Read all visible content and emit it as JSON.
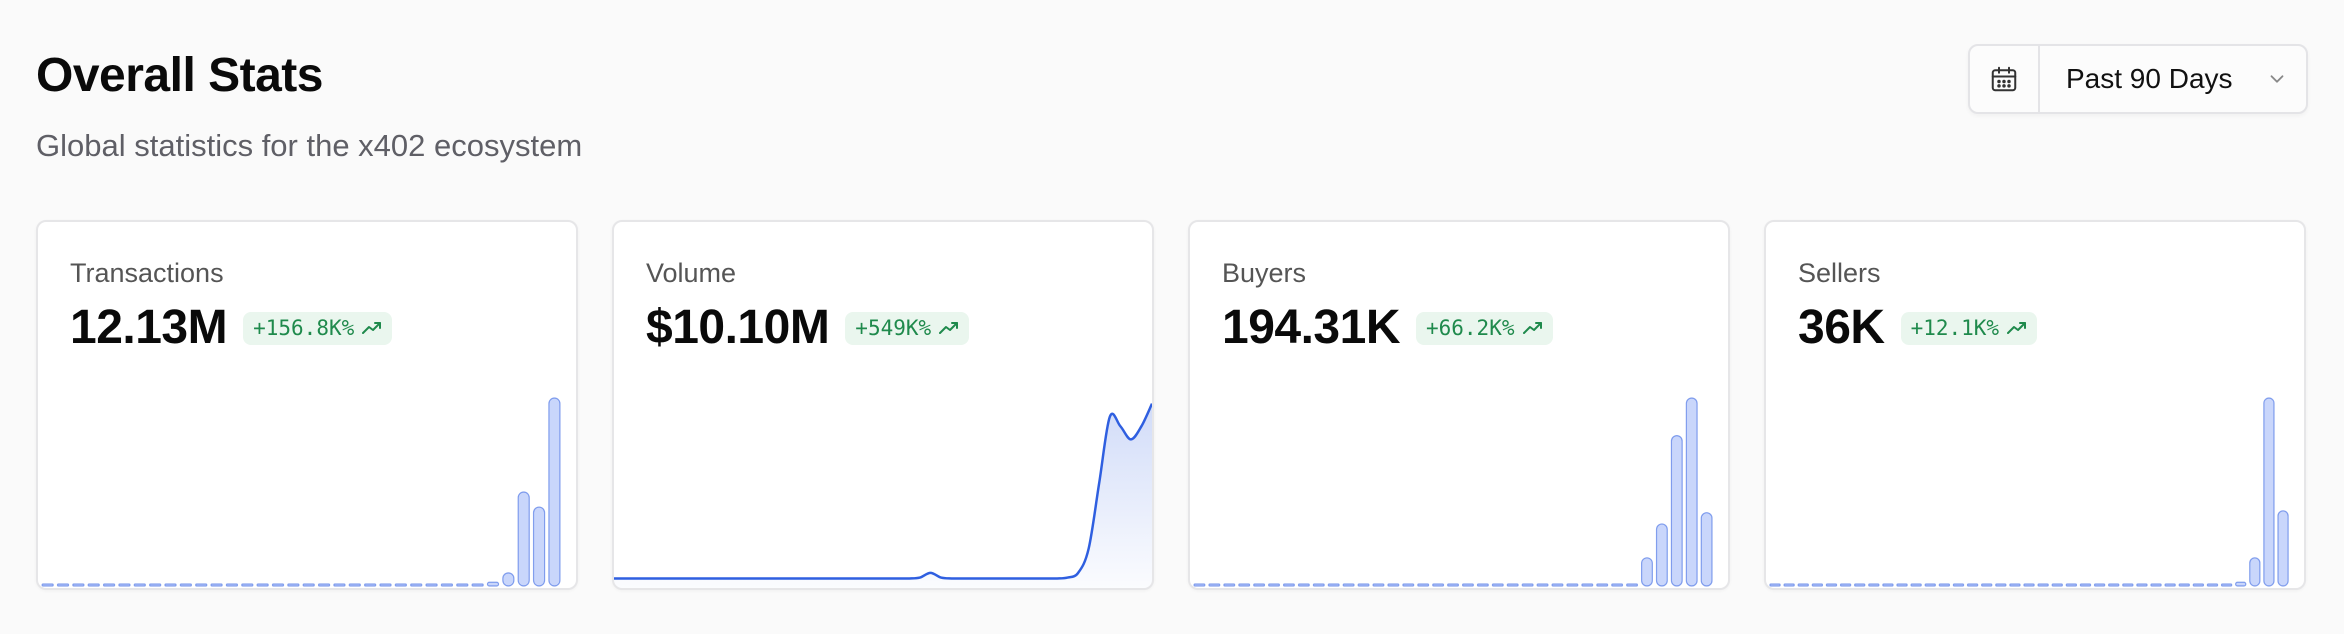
{
  "header": {
    "title": "Overall Stats",
    "subtitle": "Global statistics for the x402 ecosystem"
  },
  "range_picker": {
    "label": "Past 90 Days",
    "icon": "calendar-icon",
    "chevron_icon": "chevron-down-icon"
  },
  "colors": {
    "accent": "#2f5fe0",
    "bar_fill": "#c9d6fb",
    "positive_bg": "#eaf6ee",
    "positive_text": "#1f8a4c"
  },
  "cards": [
    {
      "label": "Transactions",
      "value": "12.13M",
      "change": "+156.8K%",
      "trend_icon": "trending-up-icon"
    },
    {
      "label": "Volume",
      "value": "$10.10M",
      "change": "+549K%",
      "trend_icon": "trending-up-icon"
    },
    {
      "label": "Buyers",
      "value": "194.31K",
      "change": "+66.2K%",
      "trend_icon": "trending-up-icon"
    },
    {
      "label": "Sellers",
      "value": "36K",
      "change": "+12.1K%",
      "trend_icon": "trending-up-icon"
    }
  ],
  "chart_data": [
    {
      "type": "bar",
      "values": [
        0.002,
        0.002,
        0.002,
        0.002,
        0.002,
        0.002,
        0.002,
        0.002,
        0.002,
        0.002,
        0.002,
        0.002,
        0.002,
        0.002,
        0.002,
        0.002,
        0.002,
        0.002,
        0.002,
        0.002,
        0.002,
        0.002,
        0.002,
        0.002,
        0.002,
        0.002,
        0.002,
        0.002,
        0.003,
        0.02,
        0.07,
        0.5,
        0.42,
        1.0
      ]
    },
    {
      "type": "area",
      "values": [
        0.04,
        0.04,
        0.04,
        0.04,
        0.04,
        0.04,
        0.04,
        0.04,
        0.04,
        0.04,
        0.04,
        0.04,
        0.04,
        0.04,
        0.04,
        0.04,
        0.04,
        0.04,
        0.04,
        0.04,
        0.04,
        0.04,
        0.04,
        0.04,
        0.04,
        0.04,
        0.04,
        0.04,
        0.04,
        0.045,
        0.07,
        0.045,
        0.04,
        0.04,
        0.04,
        0.04,
        0.04,
        0.04,
        0.04,
        0.04,
        0.04,
        0.04,
        0.04,
        0.045,
        0.07,
        0.2,
        0.55,
        0.9,
        0.85,
        0.78,
        0.85,
        0.97
      ]
    },
    {
      "type": "bar",
      "values": [
        0.002,
        0.002,
        0.002,
        0.002,
        0.002,
        0.002,
        0.002,
        0.002,
        0.002,
        0.002,
        0.002,
        0.002,
        0.002,
        0.002,
        0.002,
        0.002,
        0.002,
        0.002,
        0.002,
        0.002,
        0.002,
        0.002,
        0.002,
        0.002,
        0.002,
        0.002,
        0.002,
        0.002,
        0.002,
        0.003,
        0.15,
        0.33,
        0.8,
        1.0,
        0.39
      ]
    },
    {
      "type": "bar",
      "values": [
        0.002,
        0.002,
        0.002,
        0.002,
        0.002,
        0.002,
        0.002,
        0.002,
        0.002,
        0.002,
        0.002,
        0.002,
        0.002,
        0.002,
        0.002,
        0.002,
        0.002,
        0.002,
        0.002,
        0.002,
        0.002,
        0.002,
        0.002,
        0.002,
        0.002,
        0.002,
        0.002,
        0.002,
        0.002,
        0.002,
        0.002,
        0.002,
        0.002,
        0.02,
        0.15,
        1.0,
        0.4
      ]
    }
  ]
}
